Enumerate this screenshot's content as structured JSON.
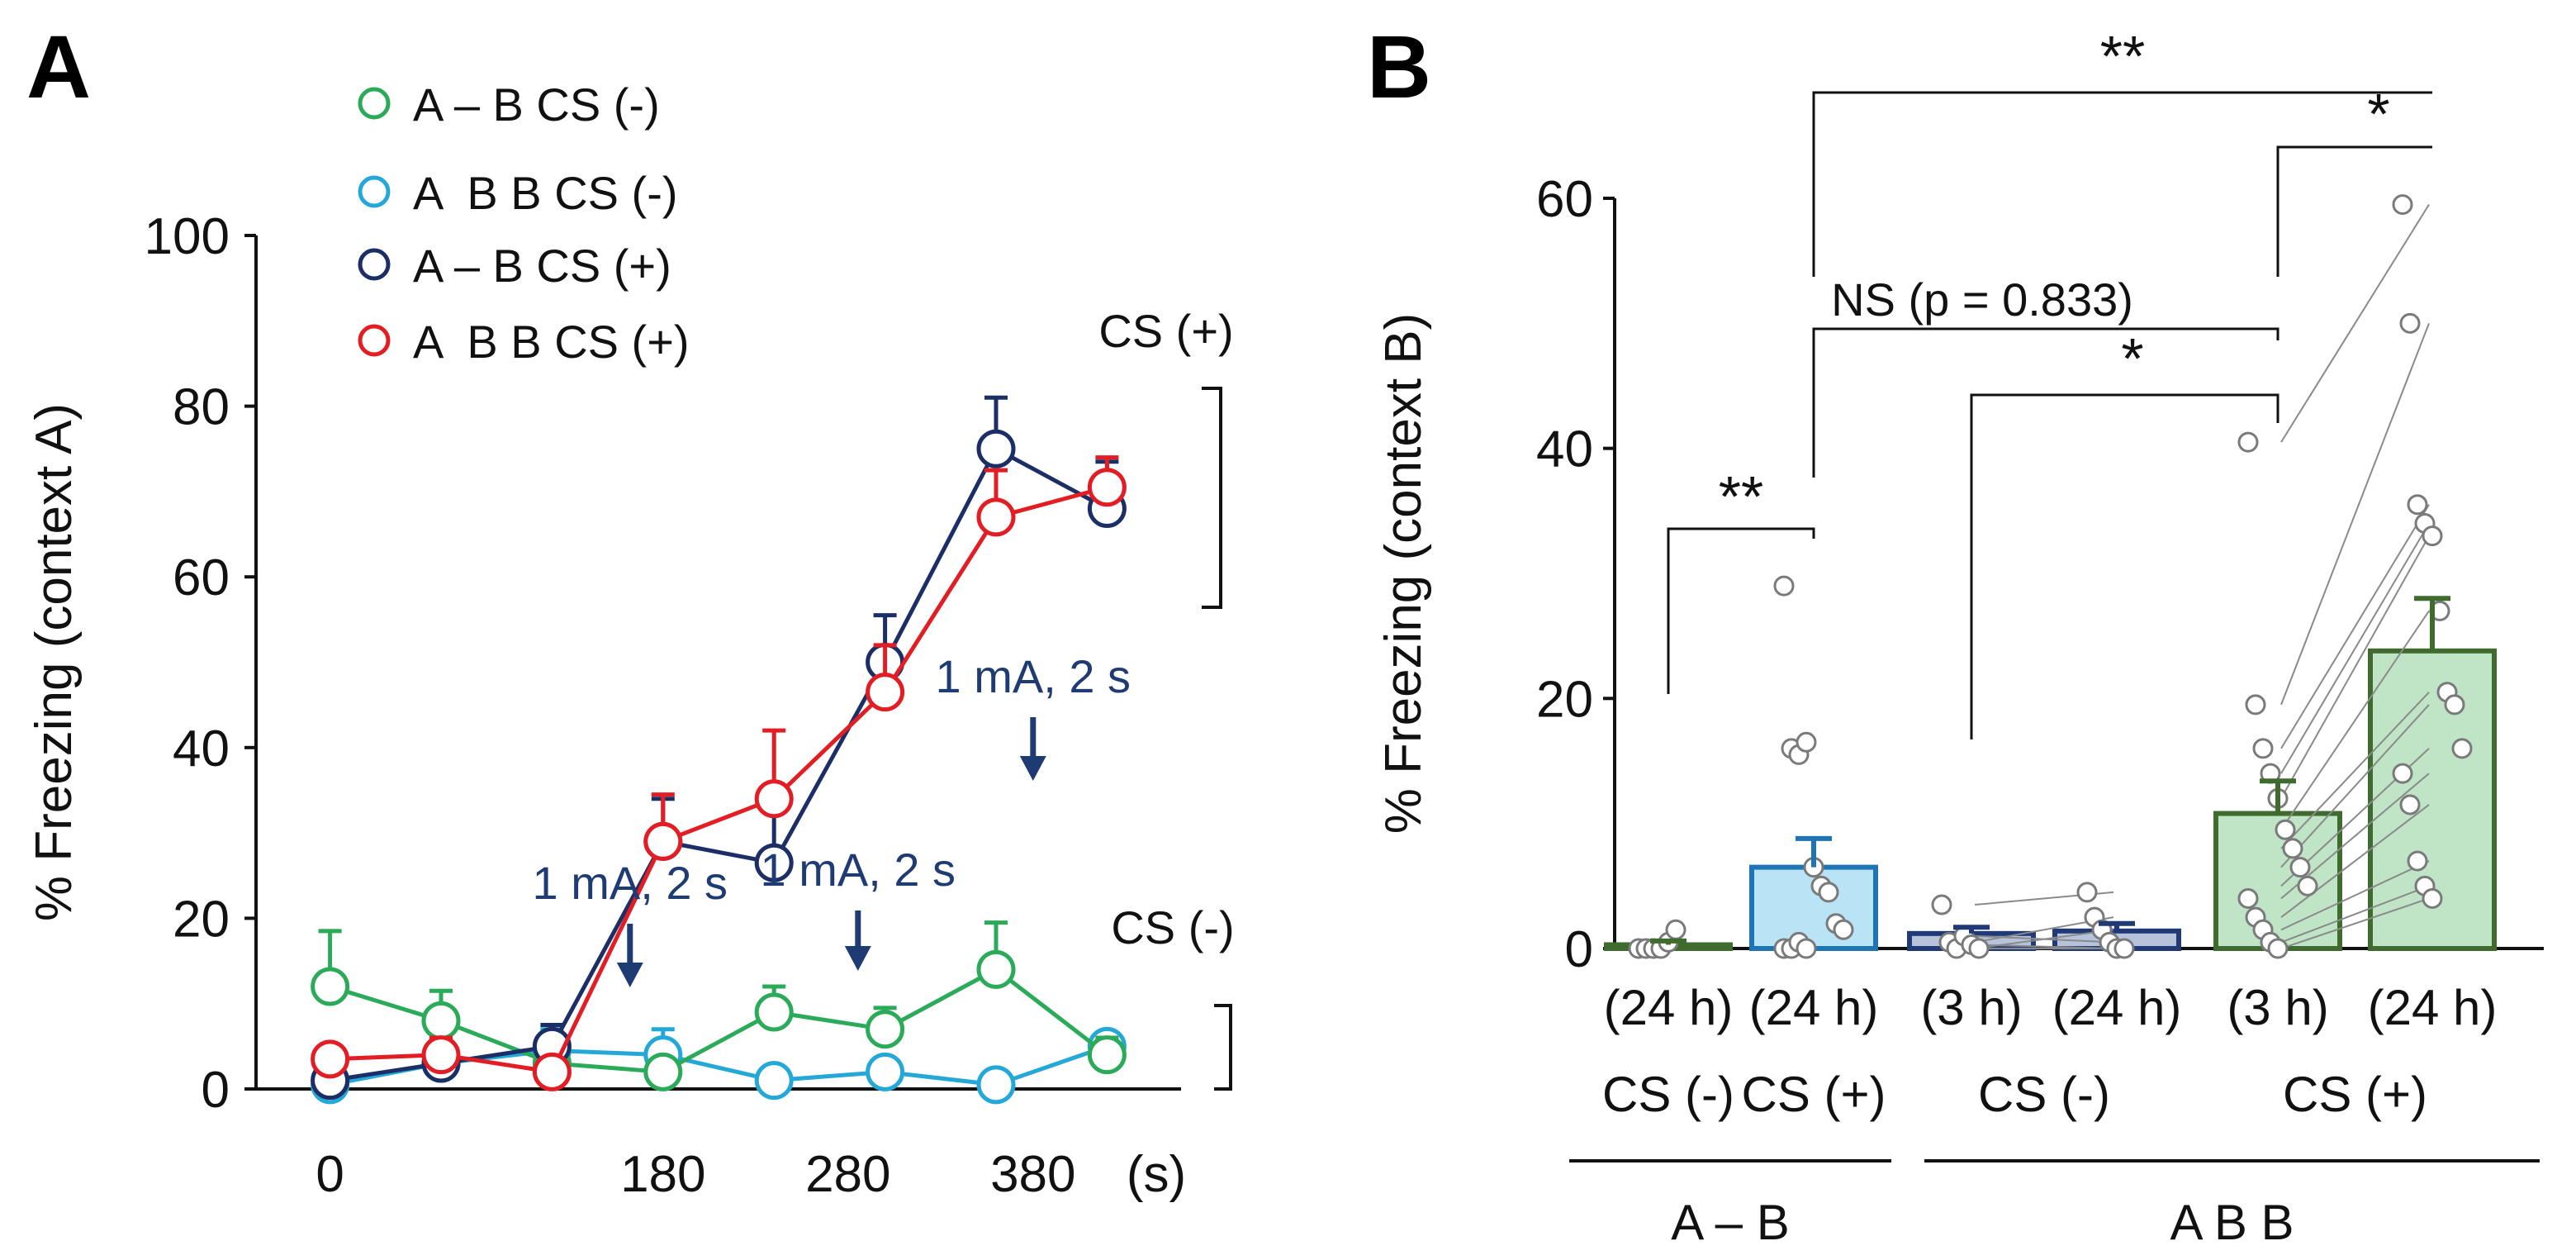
{
  "colors": {
    "green": "#2bab59",
    "cyan": "#24a8d8",
    "navy": "#1b2f66",
    "red": "#e31d24",
    "axis": "#111111",
    "arrow": "#1f3b73",
    "bar_blue_fill": "#b9e4f6",
    "bar_blue_edge": "#1f74b4",
    "bar_slate_fill": "#b6c3da",
    "bar_slate_edge": "#203a78",
    "bar_green_fill": "#bfe5c6",
    "bar_green_edge": "#3f6b2f",
    "dot_edge": "#7a7a7a",
    "pair_line": "#8a8a8a"
  },
  "chart_data": [
    {
      "panel_label": "A",
      "type": "line",
      "title": "",
      "xlabel": "(s)",
      "ylabel": "% Freezing (context A)",
      "ylim": [
        0,
        100
      ],
      "xlim": [
        -40,
        460
      ],
      "yticks": [
        0,
        20,
        40,
        60,
        80,
        100
      ],
      "xticks": [
        {
          "value": 0,
          "label": "0"
        },
        {
          "value": 180,
          "label": "180"
        },
        {
          "value": 280,
          "label": "280"
        },
        {
          "value": 380,
          "label": "380"
        }
      ],
      "x": [
        0,
        60,
        120,
        180,
        240,
        300,
        360,
        420
      ],
      "series": [
        {
          "name": "A – B CS (-)",
          "color_key": "green",
          "values": [
            12,
            8,
            3,
            2,
            9,
            7,
            14,
            4
          ],
          "errors": [
            6.5,
            3.5,
            1.5,
            1.5,
            3,
            2.5,
            5.5,
            2
          ]
        },
        {
          "name": "A  B B CS (-)",
          "color_key": "cyan",
          "values": [
            0.5,
            3,
            4.5,
            4,
            1,
            2,
            0.5,
            5
          ],
          "errors": [
            0.5,
            1.5,
            2.5,
            3,
            0.5,
            1,
            0.5,
            1.5
          ]
        },
        {
          "name": "A – B CS (+)",
          "color_key": "navy",
          "values": [
            1,
            3,
            5,
            29,
            26.5,
            50,
            75,
            68
          ],
          "errors": [
            0.5,
            1.5,
            2.5,
            5,
            6,
            5.5,
            6,
            5.5
          ]
        },
        {
          "name": "A  B B CS (+)",
          "color_key": "red",
          "values": [
            3.5,
            4,
            2,
            29,
            34,
            46.5,
            67,
            70.5
          ],
          "errors": [
            1.5,
            2,
            1,
            5.5,
            8,
            5.5,
            5.5,
            3.5
          ]
        }
      ],
      "annotations": [
        {
          "text": "1 mA, 2 s",
          "x": 180
        },
        {
          "text": "1 mA, 2 s",
          "x": 280
        },
        {
          "text": "1 mA, 2 s",
          "x": 380
        }
      ],
      "bracket_labels": [
        "CS (+)",
        "CS (-)"
      ],
      "legend_position": "top-left"
    },
    {
      "panel_label": "B",
      "type": "bar",
      "title": "",
      "xlabel": "",
      "ylabel": "% Freezing (context B)",
      "ylim": [
        0,
        60
      ],
      "yticks": [
        0,
        20,
        40,
        60
      ],
      "bars": [
        {
          "time": "(24 h)",
          "cs": "CS (-)",
          "mean": 0.3,
          "sem": 0.3,
          "style": "green",
          "dots": [
            0,
            0,
            0,
            0,
            0.5,
            1.5
          ]
        },
        {
          "time": "(24 h)",
          "cs": "CS (+)",
          "mean": 6.5,
          "sem": 2.3,
          "style": "blue",
          "dots": [
            29,
            16,
            15.5,
            16.5,
            6.5,
            5,
            4.5,
            2,
            1.5,
            0,
            0,
            0.5,
            0
          ]
        },
        {
          "time": "(3 h)",
          "cs": "",
          "mean": 1.2,
          "sem": 0.5,
          "style": "slate",
          "dots": [
            3.5,
            0.5,
            0,
            1,
            0.3,
            0
          ]
        },
        {
          "time": "(24 h)",
          "cs": "",
          "mean": 1.4,
          "sem": 0.6,
          "style": "slate",
          "dots": [
            4.5,
            2.5,
            1.5,
            0.5,
            0,
            0
          ]
        },
        {
          "time": "(3 h)",
          "cs": "",
          "mean": 10.8,
          "sem": 2.6,
          "style": "green",
          "dots": [
            40.5,
            19.5,
            16,
            14,
            12,
            9.5,
            8,
            6.5,
            5,
            4,
            2.5,
            1.5,
            0.5,
            0
          ]
        },
        {
          "time": "(24 h)",
          "cs": "",
          "mean": 23.8,
          "sem": 4.2,
          "style": "green",
          "dots": [
            59.5,
            50,
            35.5,
            34,
            33,
            27,
            20.5,
            19.5,
            16,
            14,
            11.5,
            7,
            5,
            4
          ]
        }
      ],
      "pairs": [
        {
          "from_bar": 2,
          "to_bar": 3
        },
        {
          "from_bar": 4,
          "to_bar": 5
        }
      ],
      "cs_group_labels": [
        {
          "text": "CS (-)",
          "bars": [
            2,
            3
          ]
        },
        {
          "text": "CS (+)",
          "bars": [
            4,
            5
          ]
        }
      ],
      "groups": [
        {
          "text": "A – B",
          "bars": [
            0,
            1
          ]
        },
        {
          "text": "A B B",
          "bars": [
            2,
            5
          ]
        }
      ],
      "significance": [
        {
          "label": "**",
          "from_bar": 1,
          "to_bar": 5
        },
        {
          "label": "*",
          "from_bar": 4,
          "to_bar": 5
        },
        {
          "label": "NS (p = 0.833)",
          "from_bar": 1,
          "to_bar": 4
        },
        {
          "label": "*",
          "from_bar": 2,
          "to_bar": 4
        },
        {
          "label": "**",
          "from_bar": 0,
          "to_bar": 1
        }
      ]
    }
  ]
}
